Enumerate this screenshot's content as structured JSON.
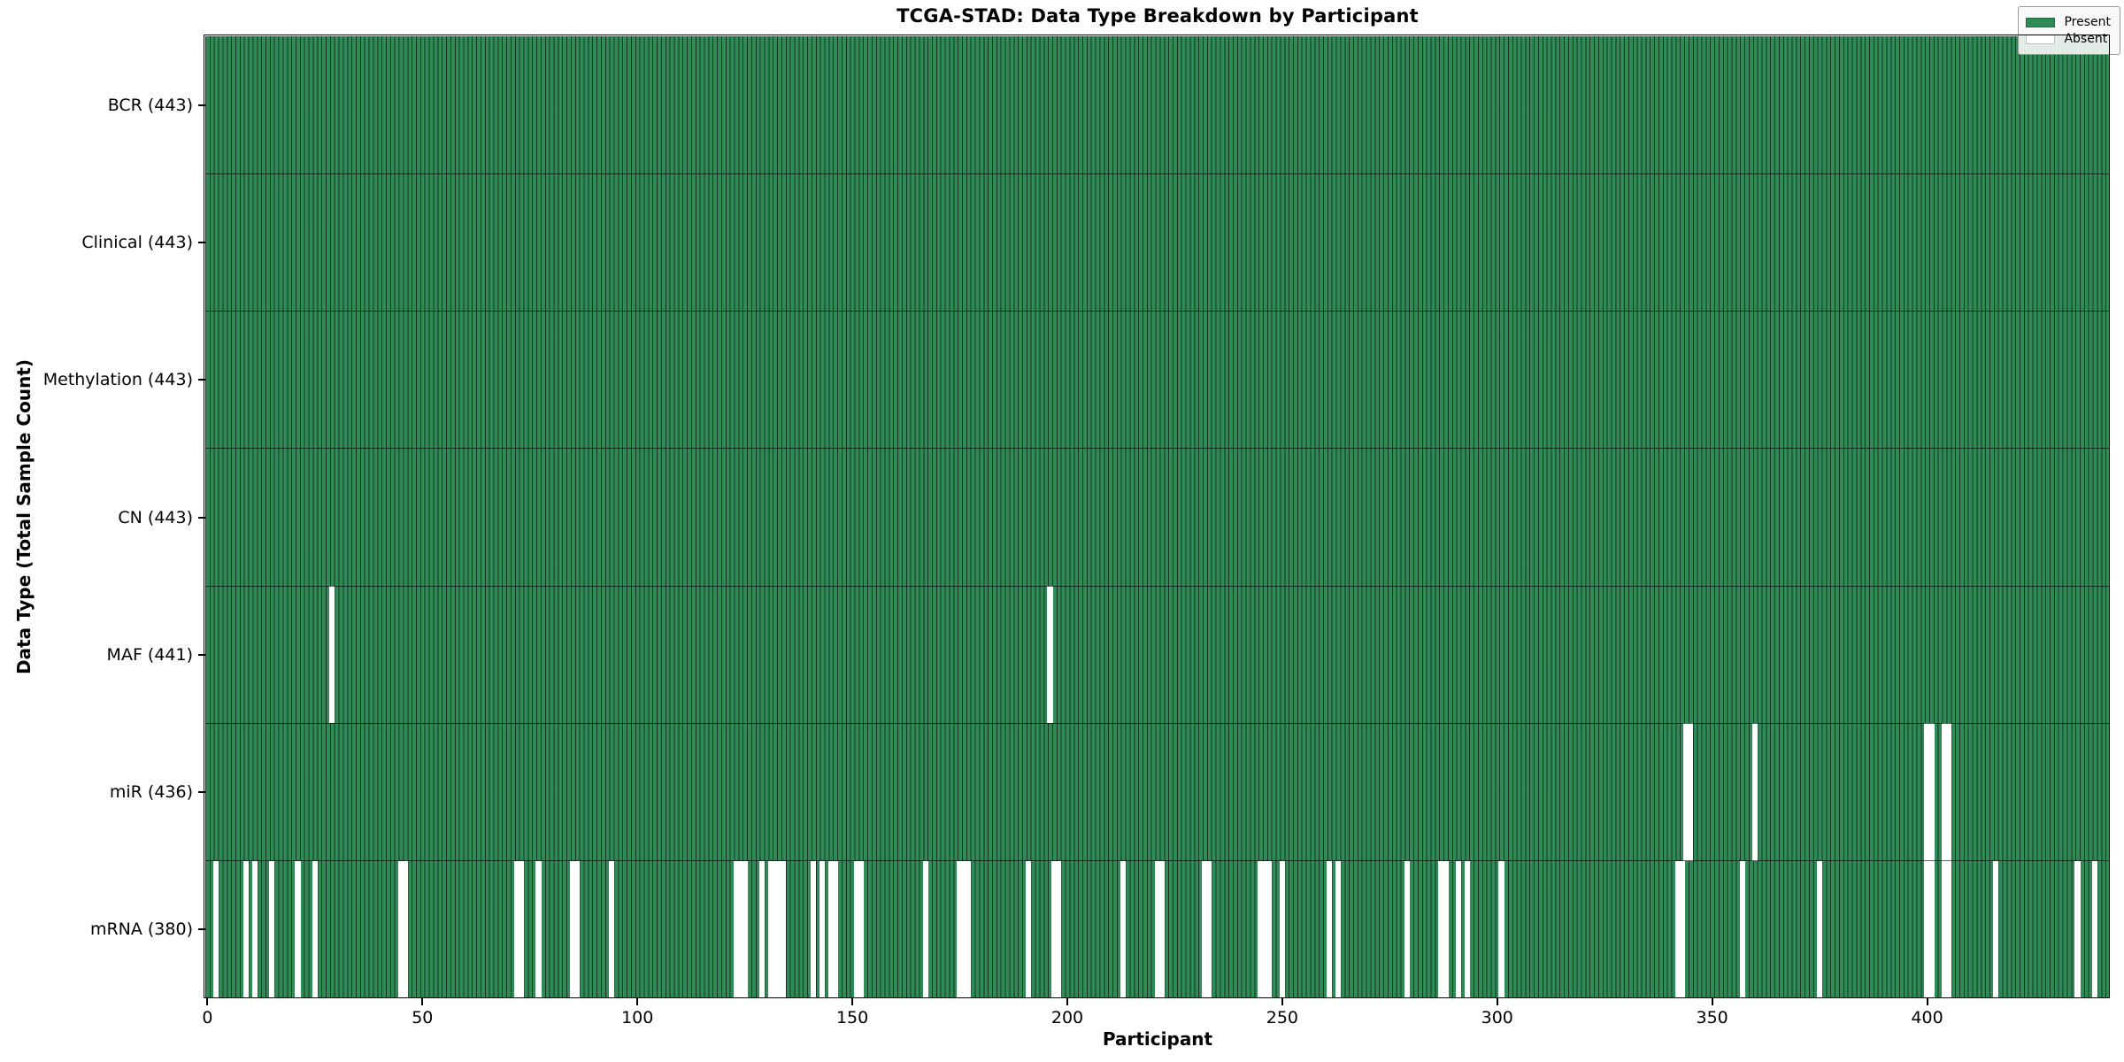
{
  "title": "TCGA-STAD: Data Type Breakdown by Participant",
  "xlabel": "Participant",
  "ylabel": "Data Type (Total Sample Count)",
  "colors": {
    "present": "#2f8a56",
    "absent": "#ffffff",
    "bar_edge": "rgba(0,0,0,0.62)",
    "legend_bg": "#f8f8f8",
    "text": "#000000"
  },
  "legend": {
    "entries": [
      {
        "label": "Present",
        "color": "#2f8a56"
      },
      {
        "label": "Absent",
        "color": "#ffffff"
      }
    ]
  },
  "chart_data": {
    "type": "heatmap",
    "title": "TCGA-STAD: Data Type Breakdown by Participant",
    "xlabel": "Participant",
    "ylabel": "Data Type (Total Sample Count)",
    "legend_position": "upper right",
    "grid": false,
    "n_participants": 443,
    "xlim": [
      0,
      443
    ],
    "x_ticks": [
      0,
      50,
      100,
      150,
      200,
      250,
      300,
      350,
      400
    ],
    "cell_states": {
      "present": 1,
      "absent": 0
    },
    "rows": [
      {
        "name": "BCR",
        "label": "BCR (443)",
        "total": 443,
        "absent": []
      },
      {
        "name": "Clinical",
        "label": "Clinical (443)",
        "total": 443,
        "absent": []
      },
      {
        "name": "Methylation",
        "label": "Methylation (443)",
        "total": 443,
        "absent": []
      },
      {
        "name": "CN",
        "label": "CN (443)",
        "total": 443,
        "absent": []
      },
      {
        "name": "MAF",
        "label": "MAF (441)",
        "total": 441,
        "absent": [
          29,
          196
        ]
      },
      {
        "name": "miR",
        "label": "miR (436)",
        "total": 436,
        "absent": [
          344,
          345,
          360,
          400,
          401,
          404,
          405
        ]
      },
      {
        "name": "mRNA",
        "label": "mRNA (380)",
        "total": 380,
        "absent": [
          2,
          9,
          11,
          15,
          21,
          25,
          45,
          46,
          72,
          73,
          77,
          85,
          86,
          94,
          123,
          124,
          125,
          129,
          131,
          132,
          133,
          134,
          141,
          143,
          145,
          146,
          151,
          152,
          167,
          175,
          176,
          177,
          191,
          197,
          198,
          213,
          221,
          222,
          232,
          233,
          245,
          246,
          247,
          250,
          261,
          263,
          279,
          287,
          288,
          291,
          293,
          301,
          342,
          343,
          357,
          375,
          400,
          401,
          404,
          405,
          416,
          435,
          439
        ]
      }
    ]
  }
}
